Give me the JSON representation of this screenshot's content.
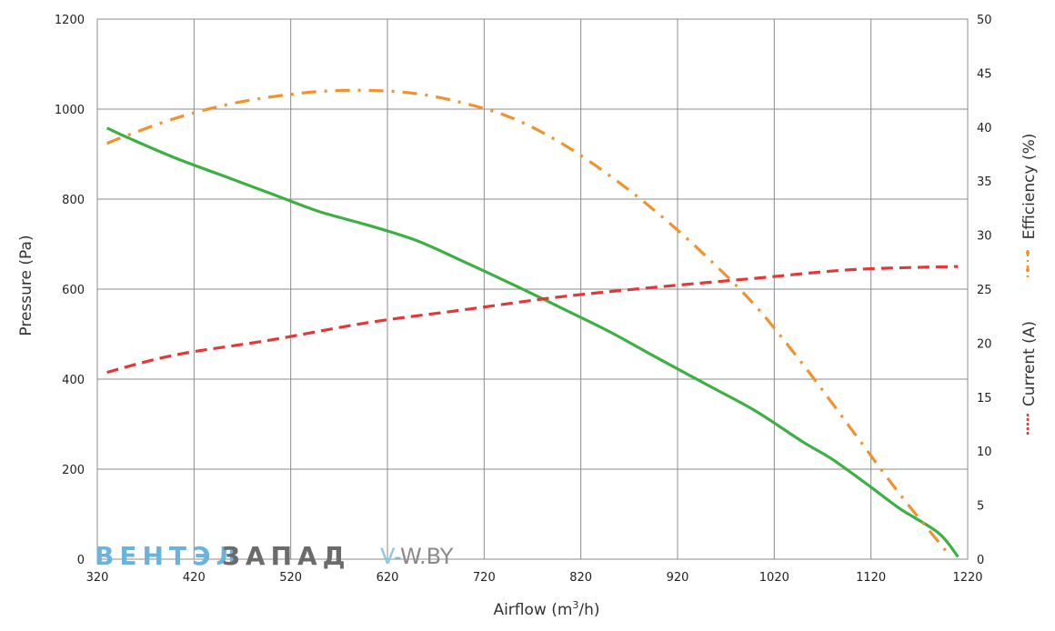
{
  "chart_data": {
    "type": "line",
    "x_axis": {
      "title_main": "Airflow (m",
      "title_sup": "3",
      "title_end": "/h)",
      "min": 320,
      "max": 1220,
      "ticks": [
        "320",
        "420",
        "520",
        "620",
        "720",
        "820",
        "920",
        "1020",
        "1120",
        "1220"
      ]
    },
    "y_left": {
      "title": "Pressure (Pa)",
      "min": 0,
      "max": 1200,
      "ticks": [
        "0",
        "200",
        "400",
        "600",
        "800",
        "1000",
        "1200"
      ]
    },
    "y_right": {
      "title_efficiency": "Efficiency (%)",
      "title_current": "Current (A)",
      "min": 0,
      "max": 50,
      "ticks": [
        "0",
        "5",
        "10",
        "15",
        "20",
        "25",
        "30",
        "35",
        "40",
        "45",
        "50"
      ]
    },
    "grid": true,
    "series": [
      {
        "name": "Pressure (Pa)",
        "axis": "left",
        "color": "#3cb043",
        "style": "solid",
        "points": [
          [
            330,
            958
          ],
          [
            350,
            938
          ],
          [
            400,
            892
          ],
          [
            450,
            852
          ],
          [
            500,
            812
          ],
          [
            550,
            772
          ],
          [
            600,
            742
          ],
          [
            650,
            708
          ],
          [
            700,
            660
          ],
          [
            750,
            610
          ],
          [
            800,
            558
          ],
          [
            850,
            505
          ],
          [
            900,
            446
          ],
          [
            950,
            388
          ],
          [
            1000,
            330
          ],
          [
            1050,
            260
          ],
          [
            1080,
            222
          ],
          [
            1120,
            160
          ],
          [
            1150,
            112
          ],
          [
            1190,
            58
          ],
          [
            1210,
            5
          ]
        ]
      },
      {
        "name": "Efficiency (%)",
        "axis": "right",
        "color": "#f0922e",
        "style": "dashdot",
        "points": [
          [
            330,
            38.5
          ],
          [
            350,
            39.2
          ],
          [
            400,
            40.8
          ],
          [
            450,
            42.0
          ],
          [
            500,
            42.8
          ],
          [
            550,
            43.3
          ],
          [
            600,
            43.4
          ],
          [
            650,
            43.1
          ],
          [
            700,
            42.2
          ],
          [
            750,
            40.8
          ],
          [
            800,
            38.5
          ],
          [
            850,
            35.5
          ],
          [
            900,
            32.0
          ],
          [
            950,
            28.0
          ],
          [
            1000,
            23.5
          ],
          [
            1050,
            18.0
          ],
          [
            1100,
            12.0
          ],
          [
            1150,
            6.0
          ],
          [
            1200,
            0.5
          ]
        ]
      },
      {
        "name": "Current (A)",
        "axis": "right",
        "color": "#e23838",
        "style": "dashed",
        "points": [
          [
            330,
            17.3
          ],
          [
            400,
            18.9
          ],
          [
            500,
            20.3
          ],
          [
            600,
            21.9
          ],
          [
            700,
            23.1
          ],
          [
            800,
            24.3
          ],
          [
            900,
            25.2
          ],
          [
            1000,
            26.0
          ],
          [
            1100,
            26.8
          ],
          [
            1210,
            27.1
          ]
        ]
      }
    ]
  },
  "watermark": {
    "cyr_blue": "ВЕНТЭЛ",
    "cyr_gray": "ЗАПАД",
    "lat_blue": "V-",
    "lat_gray": "W.BY"
  }
}
